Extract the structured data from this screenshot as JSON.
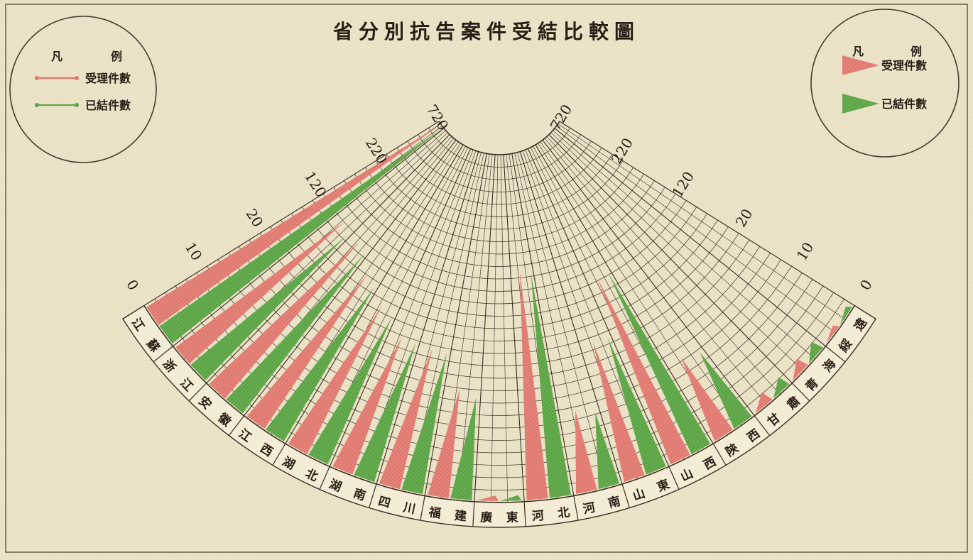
{
  "chart_data": {
    "type": "radial-bar",
    "title": "省分別抗告案件受結比較圖",
    "scale_ticks": [
      "0",
      "10",
      "20",
      "120",
      "220",
      "720"
    ],
    "categories": [
      "江蘇",
      "浙江",
      "安徽",
      "江西",
      "湖北",
      "湖南",
      "四川",
      "福建",
      "廣東",
      "河北",
      "河南",
      "山東",
      "山西",
      "陝西",
      "甘肅",
      "青海",
      "綏遠"
    ],
    "series": [
      {
        "name": "受理件數",
        "color": "#e2786e",
        "values": [
          720,
          125,
          120,
          90,
          60,
          32,
          29,
          16,
          1,
          150,
          12,
          27,
          110,
          13,
          2,
          2,
          1
        ]
      },
      {
        "name": "已結件數",
        "color": "#5ea548",
        "values": [
          720,
          112,
          110,
          80,
          52,
          30,
          27,
          15,
          1,
          145,
          11,
          25,
          108,
          12,
          2,
          2,
          1
        ]
      }
    ],
    "legends": [
      {
        "title": [
          "凡",
          "例"
        ],
        "style": "line",
        "placement": "top-left",
        "items": [
          "受理件數",
          "已結件數"
        ]
      },
      {
        "title": [
          "凡",
          "例"
        ],
        "style": "triangle",
        "placement": "top-right",
        "items": [
          "受理件數",
          "已結件數"
        ]
      }
    ]
  }
}
